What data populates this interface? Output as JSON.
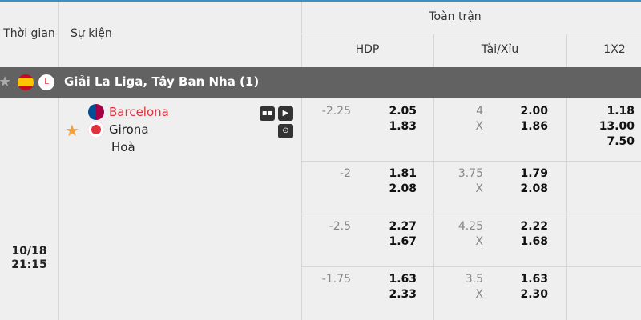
{
  "header": {
    "time": "Thời gian",
    "event": "Sự kiện",
    "full_match": "Toàn trận",
    "hdp": "HDP",
    "ou": "Tài/Xỉu",
    "x12": "1X2"
  },
  "league": {
    "name": "Giải La Liga, Tây Ban Nha (1)"
  },
  "match": {
    "date": "10/18",
    "time": "21:15",
    "home": "Barcelona",
    "away": "Girona",
    "draw": "Hoà",
    "home_color": "#e0313e",
    "favorite_color": "#f2a03a"
  },
  "rows": [
    {
      "hdp_line": "-2.25",
      "hdp_home": "2.05",
      "hdp_away": "1.83",
      "ou_line": "4",
      "ou_x": "X",
      "ou_over": "2.00",
      "ou_under": "1.86",
      "x12_home": "1.18",
      "x12_away": "13.00",
      "x12_draw": "7.50"
    },
    {
      "hdp_line": "-2",
      "hdp_home": "1.81",
      "hdp_away": "2.08",
      "ou_line": "3.75",
      "ou_x": "X",
      "ou_over": "1.79",
      "ou_under": "2.08"
    },
    {
      "hdp_line": "-2.5",
      "hdp_home": "2.27",
      "hdp_away": "1.67",
      "ou_line": "4.25",
      "ou_x": "X",
      "ou_over": "2.22",
      "ou_under": "1.68"
    },
    {
      "hdp_line": "-1.75",
      "hdp_home": "1.63",
      "hdp_away": "2.33",
      "ou_line": "3.5",
      "ou_x": "X",
      "ou_over": "1.63",
      "ou_under": "2.30"
    }
  ]
}
